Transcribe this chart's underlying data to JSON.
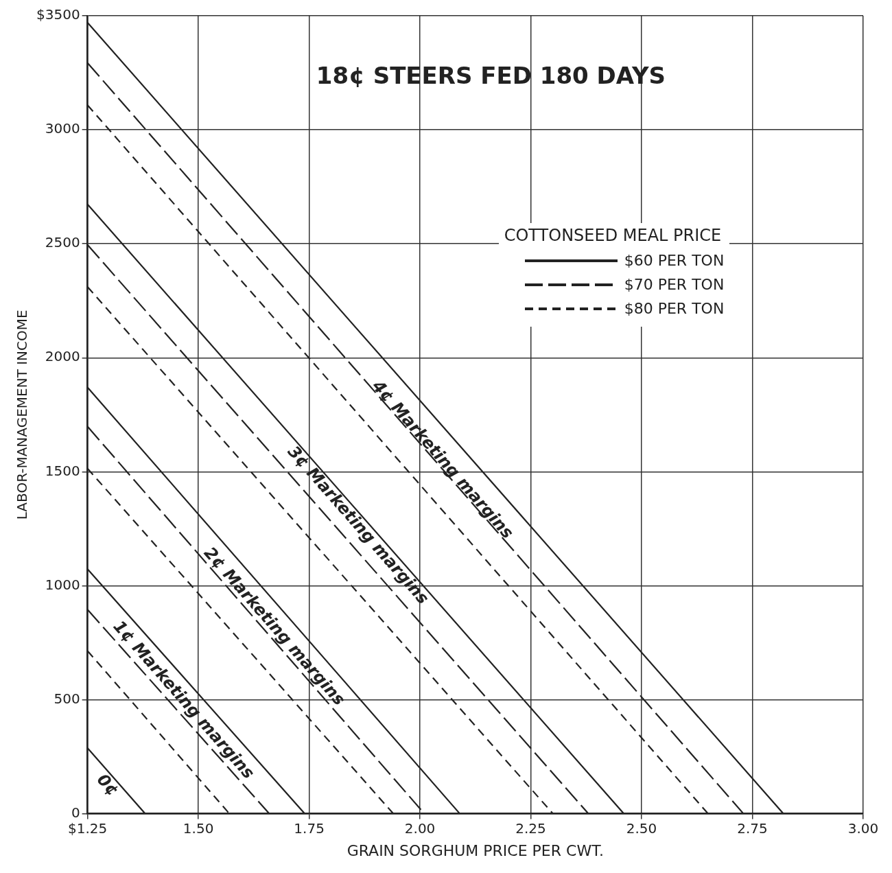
{
  "chart_data": {
    "type": "line",
    "title": "18¢ STEERS FED 180 DAYS",
    "xlabel": "GRAIN SORGHUM PRICE PER CWT.",
    "ylabel": "LABOR-MANAGEMENT INCOME",
    "legend_title": "COTTONSEED MEAL PRICE",
    "legend": "top right",
    "grid": true,
    "marker": "none",
    "xlim": [
      1.25,
      3.0
    ],
    "ylim": [
      0,
      3500
    ],
    "xticks": [
      {
        "value": 1.25,
        "label": "$1.25"
      },
      {
        "value": 1.5,
        "label": "1.50"
      },
      {
        "value": 1.75,
        "label": "1.75"
      },
      {
        "value": 2.0,
        "label": "2.00"
      },
      {
        "value": 2.25,
        "label": "2.25"
      },
      {
        "value": 2.5,
        "label": "2.50"
      },
      {
        "value": 2.75,
        "label": "2.75"
      },
      {
        "value": 3.0,
        "label": "3.00"
      }
    ],
    "yticks": [
      0,
      500,
      1000,
      1500,
      2000,
      2500,
      3000,
      {
        "value": 3500,
        "label": "$3500"
      }
    ],
    "series": [
      {
        "name": "$60 PER TON",
        "color": "#222222",
        "line_style": "solid",
        "x": [
          1.25,
          1.38,
          null,
          1.25,
          1.74,
          null,
          1.25,
          2.09,
          null,
          1.25,
          2.46,
          null,
          1.25,
          2.82
        ],
        "values": [
          288,
          0,
          null,
          1073,
          0,
          null,
          1870,
          0,
          null,
          2673,
          0,
          null,
          3470,
          0
        ]
      },
      {
        "name": "$70 PER TON",
        "color": "#222222",
        "line_style": "dashed",
        "x": [
          1.25,
          1.66,
          null,
          1.25,
          2.01,
          null,
          1.25,
          2.38,
          null,
          1.25,
          2.73
        ],
        "values": [
          895,
          0,
          null,
          1698,
          0,
          null,
          2495,
          0,
          null,
          3293,
          0
        ]
      },
      {
        "name": "$80 PER TON",
        "color": "#222222",
        "line_style": "dashed",
        "x": [
          1.25,
          1.57,
          null,
          1.25,
          1.94,
          null,
          1.25,
          2.3,
          null,
          1.25,
          2.65
        ],
        "values": [
          714,
          0,
          null,
          1514,
          0,
          null,
          2311,
          0,
          null,
          3108,
          0
        ]
      }
    ],
    "annotations": [
      "4¢ Marketing margins",
      "3¢ Marketing margins",
      "2¢ Marketing margins",
      "1¢ Marketing margins",
      "0¢"
    ]
  }
}
